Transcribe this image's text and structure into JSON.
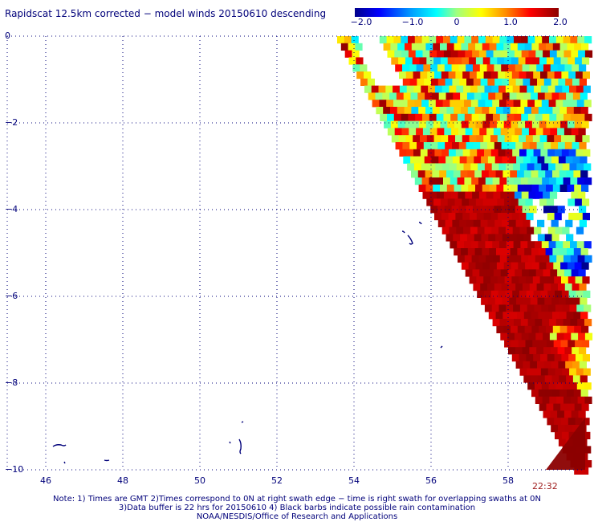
{
  "title": "Rapidscat 12.5km corrected − model winds 20150610 descending",
  "colorbar": {
    "labels": [
      "−2.0",
      "−1.0",
      "0",
      "1.0",
      "2.0"
    ],
    "range": [
      -2.0,
      2.0
    ]
  },
  "map": {
    "x_ticks": [
      "46",
      "48",
      "50",
      "52",
      "54",
      "56",
      "58"
    ],
    "y_ticks": [
      "0",
      "−2",
      "−4",
      "−6",
      "−8",
      "−10"
    ],
    "lon_range": [
      45.0,
      60.0
    ],
    "lat_range": [
      -10.0,
      0.0
    ],
    "gridlines": true,
    "colors": {
      "grid": "#00007a",
      "coast": "#00007a",
      "strong_negative": "#0000c8",
      "strong_positive": "#8b0000",
      "background": "#ffffff"
    }
  },
  "timestamp": "22:32",
  "notes": [
    "Note: 1) Times are GMT 2)Times correspond to 0N at right swath edge − time is right swath for overlapping swaths at 0N",
    "3)Data buffer is 22 hrs for 20150610 4) Black barbs indicate possible rain contamination",
    "NOAA/NESDIS/Office of Research and Applications"
  ]
}
